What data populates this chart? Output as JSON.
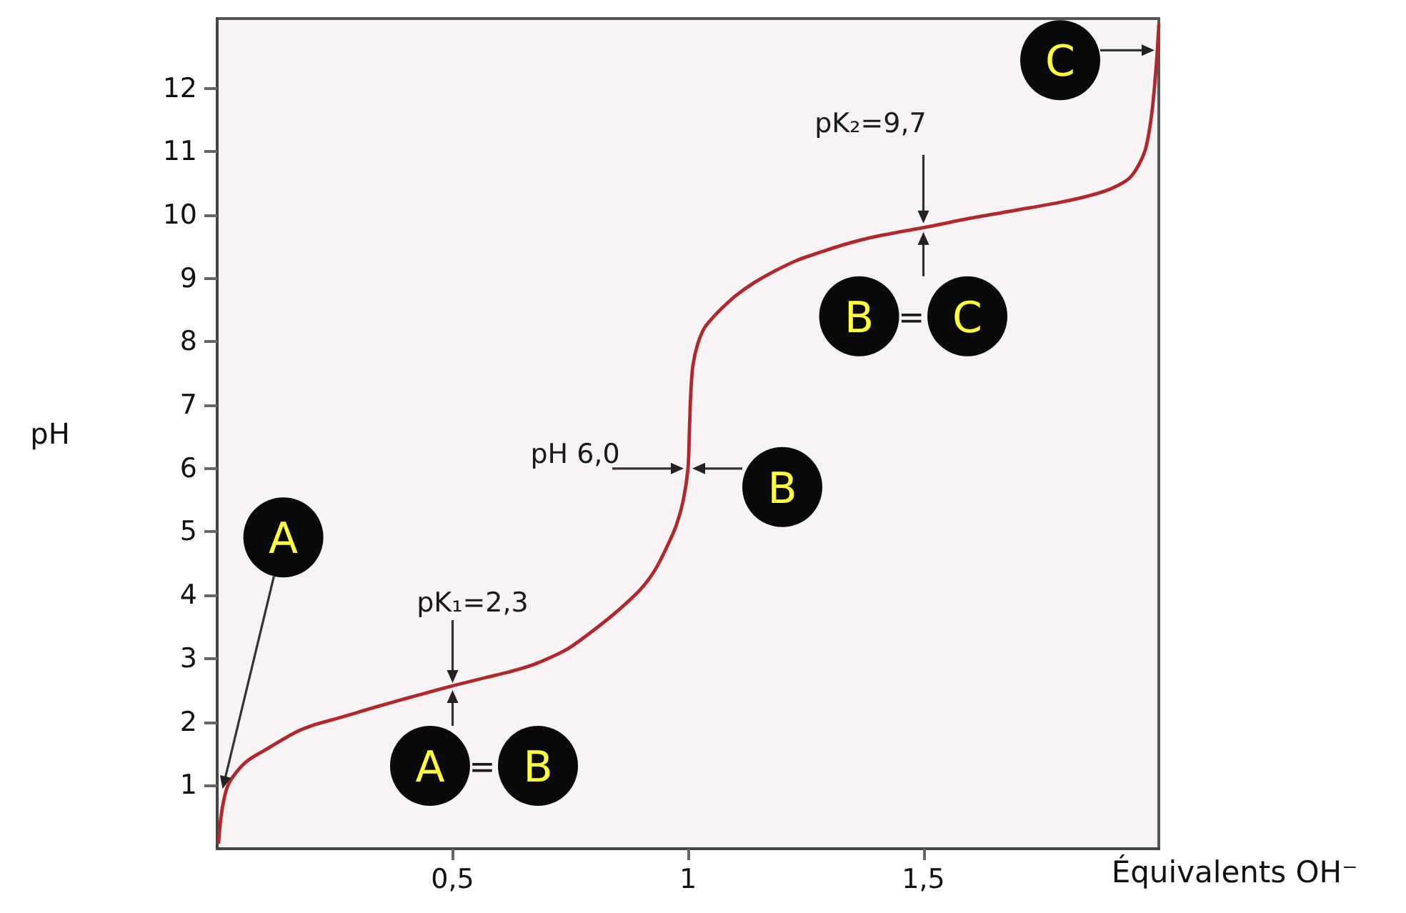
{
  "chart_data": {
    "type": "line",
    "xlabel": "Équivalents OH⁻",
    "ylabel": "pH",
    "x": [
      0.003,
      0.008,
      0.015,
      0.023,
      0.04,
      0.063,
      0.1,
      0.165,
      0.2,
      0.266,
      0.32,
      0.367,
      0.43,
      0.5,
      0.57,
      0.62,
      0.67,
      0.72,
      0.75,
      0.8,
      0.85,
      0.9,
      0.93,
      0.955,
      0.975,
      0.99,
      1.0,
      1.003,
      1.006,
      1.01,
      1.02,
      1.035,
      1.055,
      1.075,
      1.1,
      1.14,
      1.18,
      1.23,
      1.28,
      1.33,
      1.38,
      1.44,
      1.5,
      1.6,
      1.7,
      1.79,
      1.85,
      1.9,
      1.94,
      1.97,
      1.985,
      1.995,
      2.0
    ],
    "series": [
      {
        "color": "#b0282c",
        "values": [
          0.1,
          0.5,
          0.8,
          1.0,
          1.2,
          1.38,
          1.55,
          1.83,
          1.94,
          2.08,
          2.2,
          2.3,
          2.43,
          2.57,
          2.7,
          2.79,
          2.9,
          3.06,
          3.18,
          3.45,
          3.75,
          4.1,
          4.4,
          4.76,
          5.1,
          5.5,
          6.0,
          6.6,
          7.2,
          7.6,
          7.95,
          8.22,
          8.4,
          8.55,
          8.72,
          8.93,
          9.1,
          9.28,
          9.41,
          9.53,
          9.63,
          9.72,
          9.8,
          9.95,
          10.08,
          10.2,
          10.3,
          10.42,
          10.6,
          11.0,
          11.6,
          12.4,
          13.0
        ]
      }
    ],
    "xlim": [
      0,
      2
    ],
    "ylim": [
      0,
      13.1
    ],
    "xticks": [
      {
        "value": 0.5,
        "label": "0,5"
      },
      1,
      {
        "value": 1.5,
        "label": "1,5"
      }
    ],
    "yticks": [
      1,
      2,
      3,
      4,
      5,
      6,
      7,
      8,
      9,
      10,
      11,
      12
    ],
    "marker": "none",
    "annotations": [
      {
        "text": "A",
        "x": 0.01,
        "y": 0.9
      },
      {
        "text": "pK₁=2,3",
        "x": 0.5,
        "y": 2.57
      },
      {
        "text": "A = B",
        "x": 0.5,
        "y": 2.57
      },
      {
        "text": "pH 6,0",
        "x": 1.0,
        "y": 6.0
      },
      {
        "text": "B",
        "x": 1.0,
        "y": 6.0
      },
      {
        "text": "pK₂=9,7",
        "x": 1.5,
        "y": 9.8
      },
      {
        "text": "B = C",
        "x": 1.5,
        "y": 9.8
      },
      {
        "text": "C",
        "x": 2.0,
        "y": 12.6
      }
    ]
  }
}
